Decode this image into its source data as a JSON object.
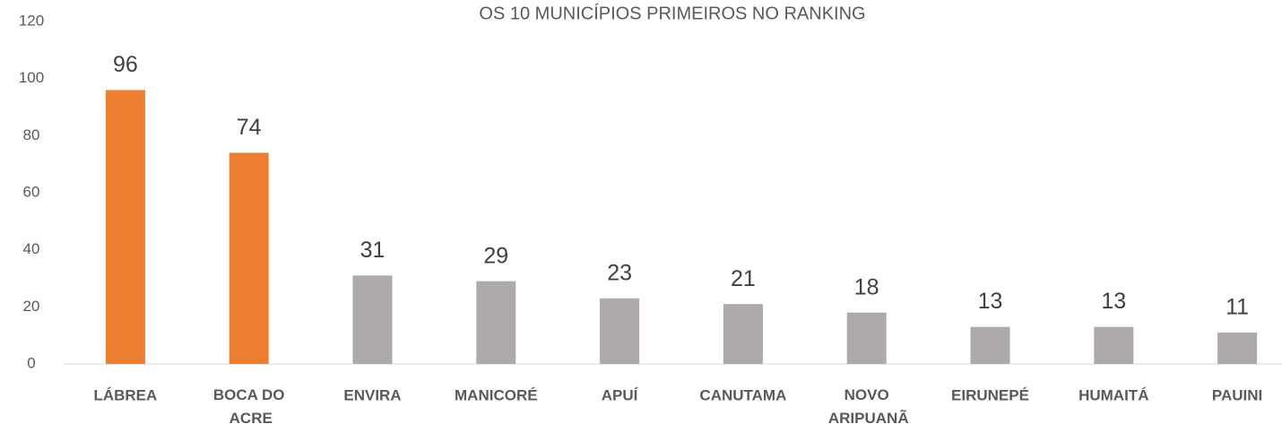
{
  "chart_data": {
    "type": "bar",
    "title": "OS 10 MUNICÍPIOS PRIMEIROS NO RANKING",
    "categories": [
      "LÁBREA",
      "BOCA DO ACRE",
      "ENVIRA",
      "MANICORÉ",
      "APUÍ",
      "CANUTAMA",
      "NOVO ARIPUANÃ",
      "EIRUNEPÉ",
      "HUMAITÁ",
      "PAUINI"
    ],
    "values": [
      96,
      74,
      31,
      29,
      23,
      21,
      18,
      13,
      13,
      11
    ],
    "colors": [
      "#ed7d31",
      "#ed7d31",
      "#aeaaaa",
      "#aeaaaa",
      "#aeaaaa",
      "#aeaaaa",
      "#aeaaaa",
      "#aeaaaa",
      "#aeaaaa",
      "#aeaaaa"
    ],
    "ylim": [
      0,
      120
    ],
    "yticks": [
      0,
      20,
      40,
      60,
      80,
      100,
      120
    ],
    "grid": false
  }
}
